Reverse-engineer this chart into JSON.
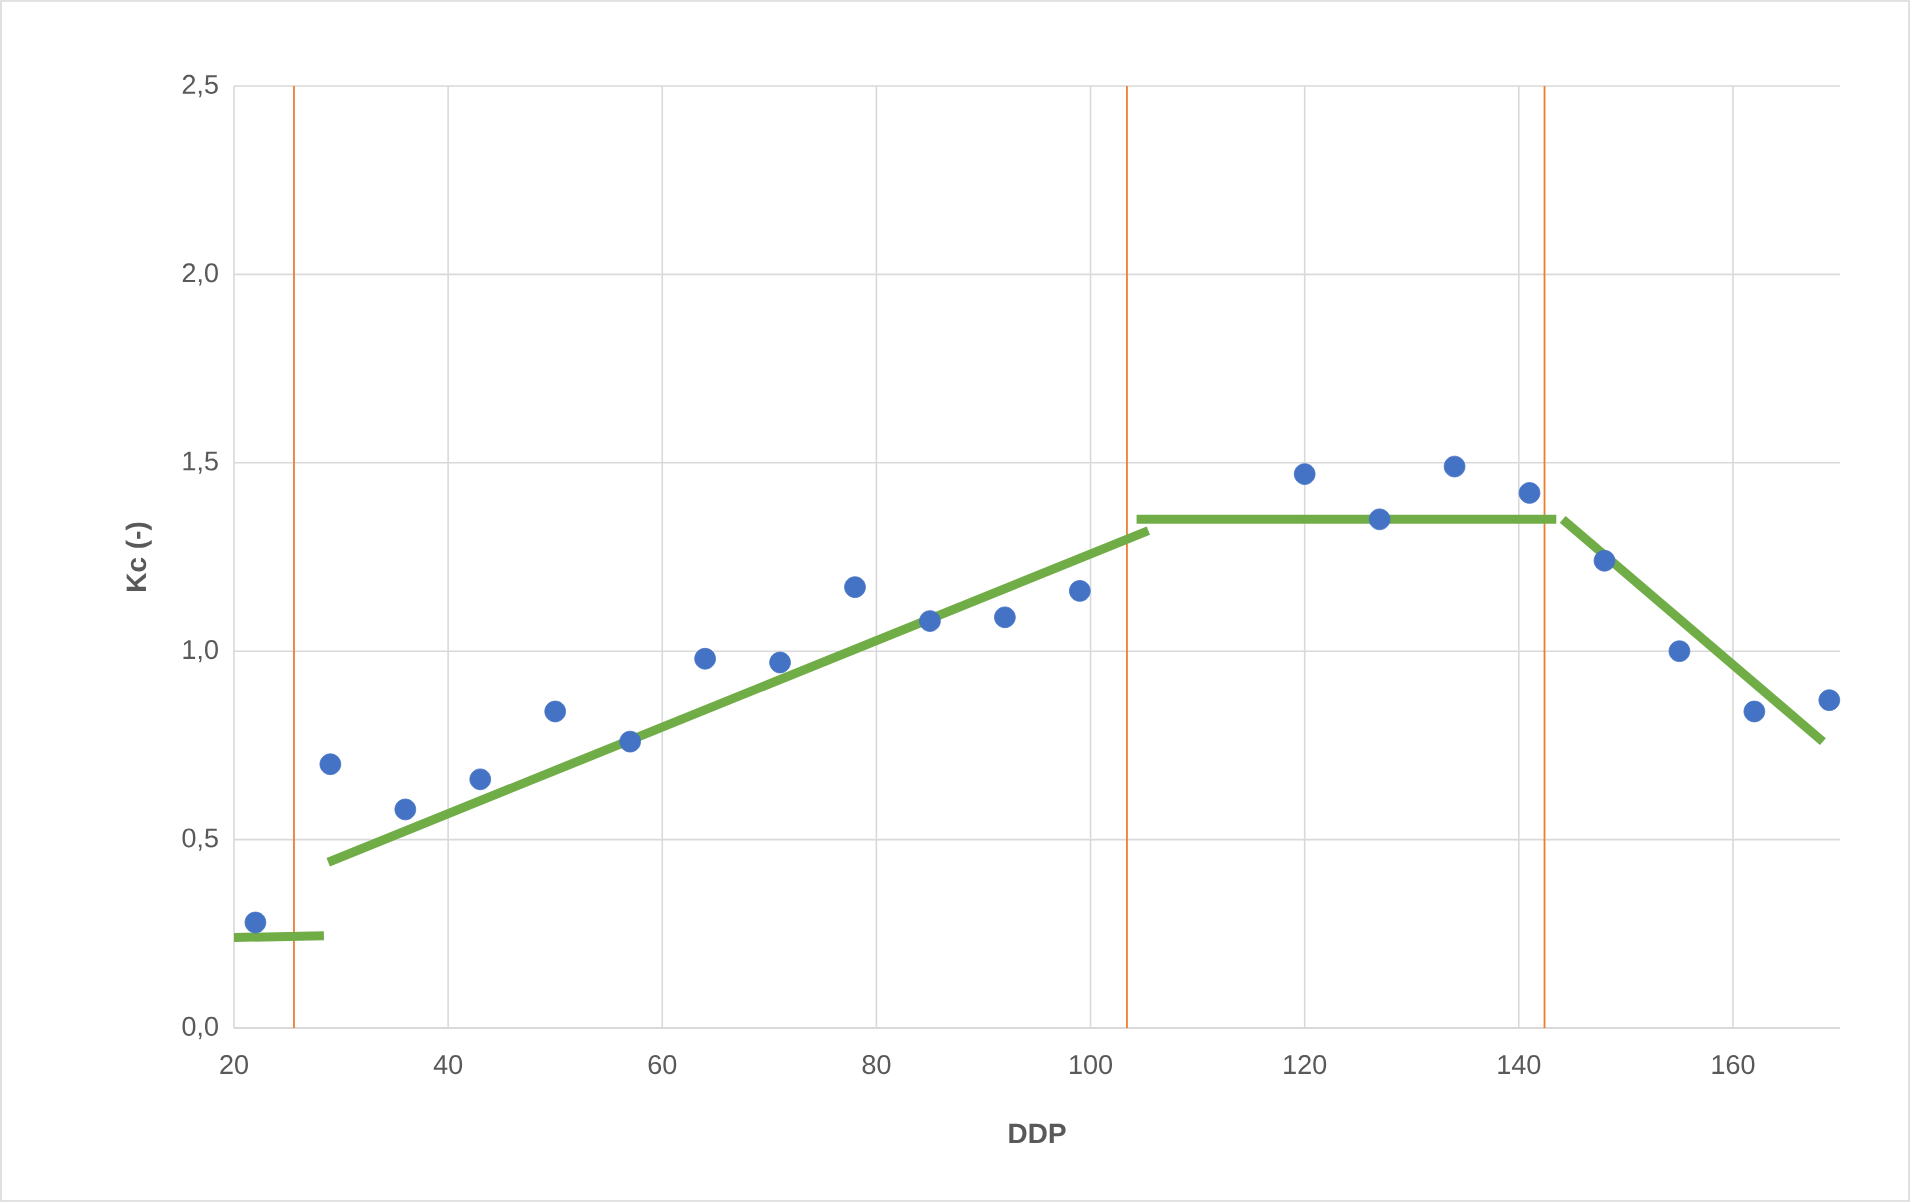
{
  "chart_data": {
    "type": "scatter",
    "xlabel": "DDP",
    "ylabel": "Kc (-)",
    "xlim": [
      20,
      170
    ],
    "xticks": [
      20,
      40,
      60,
      80,
      100,
      120,
      140,
      160
    ],
    "ylim": [
      0,
      2.5
    ],
    "yticks": [
      {
        "value": 0,
        "label": "0,0"
      },
      {
        "value": 0.5,
        "label": "0,5"
      },
      {
        "value": 1,
        "label": "1,0"
      },
      {
        "value": 1.5,
        "label": "1,5"
      },
      {
        "value": 2,
        "label": "2,0"
      },
      {
        "value": 2.5,
        "label": "2,5"
      }
    ],
    "grid": true,
    "series": [
      {
        "marker": "circle",
        "color": "#4472c4",
        "x": [
          22,
          29,
          36,
          43,
          50,
          57,
          64,
          71,
          78,
          85,
          92,
          99,
          120,
          127,
          134,
          141,
          148,
          155,
          162,
          169
        ],
        "values": [
          0.28,
          0.7,
          0.58,
          0.66,
          0.84,
          0.76,
          0.98,
          0.97,
          1.17,
          1.08,
          1.09,
          1.16,
          1.47,
          1.35,
          1.49,
          1.42,
          1.24,
          1.0,
          0.84,
          0.87
        ]
      },
      {
        "type": "line",
        "marker": "none",
        "color": "#70ad47",
        "x": [
          20,
          28.4
        ],
        "values": [
          0.24,
          0.245
        ]
      },
      {
        "type": "line",
        "marker": "none",
        "color": "#70ad47",
        "x": [
          28.8,
          105.4
        ],
        "values": [
          0.44,
          1.32
        ]
      },
      {
        "type": "line",
        "marker": "none",
        "color": "#70ad47",
        "x": [
          104.3,
          143.5
        ],
        "values": [
          1.35,
          1.35
        ]
      },
      {
        "type": "line",
        "marker": "none",
        "color": "#70ad47",
        "x": [
          144.1,
          168.4
        ],
        "values": [
          1.35,
          0.76
        ]
      }
    ],
    "ref_lines": [
      {
        "axis": "x",
        "value": 25.6,
        "color": "#ed7d31"
      },
      {
        "axis": "x",
        "value": 103.4,
        "color": "#ed7d31"
      },
      {
        "axis": "x",
        "value": 142.4,
        "color": "#ed7d31"
      }
    ]
  }
}
